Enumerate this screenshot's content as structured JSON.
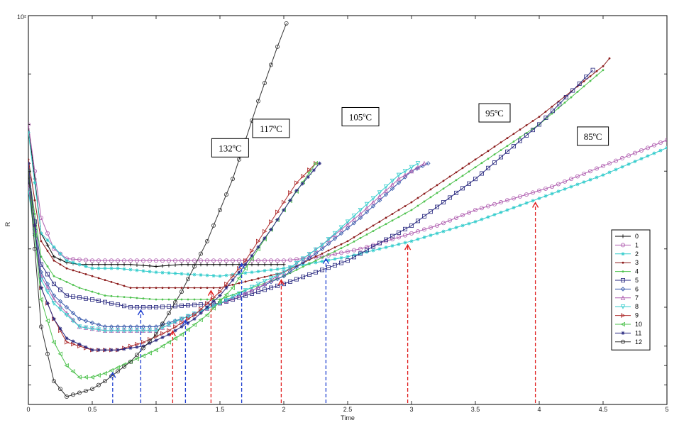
{
  "chart_data": {
    "type": "line",
    "title": "",
    "xlabel": "Time",
    "ylabel": "R",
    "xlim": [
      0,
      5
    ],
    "ylim_fraction": [
      0,
      1
    ],
    "y_scale": "log",
    "x_ticks": [
      "0",
      "0.5",
      "1",
      "1.5",
      "2",
      "2.5",
      "3",
      "3.5",
      "4",
      "4.5",
      "5"
    ],
    "y_top_label": "10²",
    "grid": false,
    "legend_position": "right",
    "series": [
      {
        "name": "0",
        "color": "#000000",
        "marker": "+",
        "points": [
          [
            0,
            0.72
          ],
          [
            0.1,
            0.44
          ],
          [
            0.2,
            0.38
          ],
          [
            0.3,
            0.365
          ],
          [
            0.4,
            0.36
          ],
          [
            0.6,
            0.36
          ],
          [
            0.8,
            0.36
          ],
          [
            1.0,
            0.355
          ],
          [
            1.2,
            0.36
          ],
          [
            1.5,
            0.36
          ],
          [
            1.8,
            0.36
          ],
          [
            2.0,
            0.36
          ]
        ]
      },
      {
        "name": "1",
        "color": "#b05fb0",
        "marker": "o",
        "points": [
          [
            0,
            0.72
          ],
          [
            0.1,
            0.48
          ],
          [
            0.2,
            0.4
          ],
          [
            0.3,
            0.375
          ],
          [
            0.5,
            0.37
          ],
          [
            1.0,
            0.37
          ],
          [
            1.5,
            0.37
          ],
          [
            2.0,
            0.37
          ],
          [
            2.3,
            0.38
          ],
          [
            2.6,
            0.4
          ],
          [
            2.9,
            0.43
          ],
          [
            3.2,
            0.46
          ],
          [
            3.5,
            0.5
          ],
          [
            3.8,
            0.53
          ],
          [
            4.1,
            0.56
          ],
          [
            4.4,
            0.6
          ],
          [
            4.7,
            0.64
          ],
          [
            5.0,
            0.68
          ]
        ]
      },
      {
        "name": "2",
        "color": "#33cccc",
        "marker": "*",
        "points": [
          [
            0,
            0.7
          ],
          [
            0.1,
            0.44
          ],
          [
            0.3,
            0.37
          ],
          [
            0.5,
            0.35
          ],
          [
            0.7,
            0.35
          ],
          [
            1.0,
            0.34
          ],
          [
            1.5,
            0.33
          ],
          [
            2.0,
            0.35
          ],
          [
            2.5,
            0.38
          ],
          [
            3.0,
            0.42
          ],
          [
            3.5,
            0.47
          ],
          [
            4.0,
            0.53
          ],
          [
            4.5,
            0.59
          ],
          [
            5.0,
            0.66
          ]
        ]
      },
      {
        "name": "3",
        "color": "#8b1a1a",
        "marker": "•",
        "points": [
          [
            0,
            0.63
          ],
          [
            0.1,
            0.42
          ],
          [
            0.2,
            0.37
          ],
          [
            0.3,
            0.35
          ],
          [
            0.5,
            0.33
          ],
          [
            0.8,
            0.3
          ],
          [
            1.0,
            0.3
          ],
          [
            1.5,
            0.3
          ],
          [
            2.0,
            0.34
          ],
          [
            2.5,
            0.42
          ],
          [
            3.0,
            0.52
          ],
          [
            3.5,
            0.63
          ],
          [
            4.0,
            0.74
          ],
          [
            4.5,
            0.87
          ],
          [
            4.55,
            0.89
          ]
        ]
      },
      {
        "name": "4",
        "color": "#4ec24e",
        "marker": "•",
        "points": [
          [
            0,
            0.6
          ],
          [
            0.1,
            0.38
          ],
          [
            0.2,
            0.33
          ],
          [
            0.4,
            0.3
          ],
          [
            0.6,
            0.28
          ],
          [
            1.0,
            0.27
          ],
          [
            1.5,
            0.27
          ],
          [
            2.0,
            0.33
          ],
          [
            2.5,
            0.41
          ],
          [
            3.0,
            0.5
          ],
          [
            3.5,
            0.61
          ],
          [
            4.0,
            0.72
          ],
          [
            4.5,
            0.86
          ]
        ]
      },
      {
        "name": "5",
        "color": "#2a2a80",
        "marker": "s",
        "points": [
          [
            0,
            0.58
          ],
          [
            0.1,
            0.36
          ],
          [
            0.2,
            0.31
          ],
          [
            0.3,
            0.28
          ],
          [
            0.5,
            0.27
          ],
          [
            0.8,
            0.25
          ],
          [
            1.0,
            0.25
          ],
          [
            1.5,
            0.26
          ],
          [
            2.0,
            0.31
          ],
          [
            2.5,
            0.37
          ],
          [
            3.0,
            0.46
          ],
          [
            3.5,
            0.58
          ],
          [
            4.0,
            0.72
          ],
          [
            4.42,
            0.86
          ]
        ]
      },
      {
        "name": "6",
        "color": "#3355aa",
        "marker": "d",
        "points": [
          [
            0,
            0.56
          ],
          [
            0.1,
            0.34
          ],
          [
            0.2,
            0.28
          ],
          [
            0.4,
            0.22
          ],
          [
            0.6,
            0.2
          ],
          [
            0.8,
            0.2
          ],
          [
            1.0,
            0.2
          ],
          [
            1.2,
            0.22
          ],
          [
            1.5,
            0.26
          ],
          [
            1.8,
            0.3
          ],
          [
            2.0,
            0.33
          ],
          [
            2.3,
            0.4
          ],
          [
            2.6,
            0.48
          ],
          [
            2.8,
            0.54
          ],
          [
            3.0,
            0.6
          ],
          [
            3.13,
            0.62
          ]
        ]
      },
      {
        "name": "7",
        "color": "#b05fb0",
        "marker": "^",
        "points": [
          [
            0,
            0.56
          ],
          [
            0.1,
            0.33
          ],
          [
            0.2,
            0.27
          ],
          [
            0.4,
            0.2
          ],
          [
            0.6,
            0.19
          ],
          [
            0.8,
            0.19
          ],
          [
            1.0,
            0.19
          ],
          [
            1.2,
            0.22
          ],
          [
            1.5,
            0.26
          ],
          [
            1.8,
            0.3
          ],
          [
            2.0,
            0.34
          ],
          [
            2.3,
            0.41
          ],
          [
            2.6,
            0.49
          ],
          [
            2.9,
            0.58
          ],
          [
            3.1,
            0.62
          ]
        ]
      },
      {
        "name": "8",
        "color": "#33cccc",
        "marker": "v",
        "points": [
          [
            0,
            0.55
          ],
          [
            0.1,
            0.32
          ],
          [
            0.2,
            0.26
          ],
          [
            0.4,
            0.2
          ],
          [
            0.6,
            0.19
          ],
          [
            0.8,
            0.19
          ],
          [
            1.0,
            0.19
          ],
          [
            1.2,
            0.22
          ],
          [
            1.5,
            0.26
          ],
          [
            1.8,
            0.31
          ],
          [
            2.0,
            0.34
          ],
          [
            2.3,
            0.41
          ],
          [
            2.6,
            0.5
          ],
          [
            2.9,
            0.59
          ],
          [
            3.05,
            0.62
          ]
        ]
      },
      {
        "name": "9",
        "color": "#b03030",
        "marker": ">",
        "points": [
          [
            0,
            0.62
          ],
          [
            0.1,
            0.3
          ],
          [
            0.2,
            0.22
          ],
          [
            0.3,
            0.16
          ],
          [
            0.5,
            0.14
          ],
          [
            0.7,
            0.14
          ],
          [
            0.9,
            0.16
          ],
          [
            1.1,
            0.19
          ],
          [
            1.3,
            0.23
          ],
          [
            1.5,
            0.29
          ],
          [
            1.7,
            0.37
          ],
          [
            1.9,
            0.47
          ],
          [
            2.1,
            0.57
          ],
          [
            2.25,
            0.62
          ]
        ]
      },
      {
        "name": "10",
        "color": "#4ec24e",
        "marker": "<",
        "points": [
          [
            0,
            0.6
          ],
          [
            0.1,
            0.27
          ],
          [
            0.2,
            0.16
          ],
          [
            0.3,
            0.1
          ],
          [
            0.4,
            0.07
          ],
          [
            0.5,
            0.07
          ],
          [
            0.6,
            0.08
          ],
          [
            0.8,
            0.11
          ],
          [
            1.0,
            0.14
          ],
          [
            1.2,
            0.18
          ],
          [
            1.4,
            0.23
          ],
          [
            1.6,
            0.3
          ],
          [
            1.8,
            0.4
          ],
          [
            2.0,
            0.5
          ],
          [
            2.25,
            0.62
          ]
        ]
      },
      {
        "name": "11",
        "color": "#2a2a80",
        "marker": "*",
        "points": [
          [
            0,
            0.62
          ],
          [
            0.1,
            0.3
          ],
          [
            0.2,
            0.22
          ],
          [
            0.3,
            0.17
          ],
          [
            0.5,
            0.14
          ],
          [
            0.7,
            0.14
          ],
          [
            0.9,
            0.15
          ],
          [
            1.1,
            0.18
          ],
          [
            1.3,
            0.22
          ],
          [
            1.5,
            0.28
          ],
          [
            1.7,
            0.36
          ],
          [
            1.9,
            0.45
          ],
          [
            2.1,
            0.55
          ],
          [
            2.28,
            0.62
          ]
        ]
      },
      {
        "name": "12",
        "color": "#333333",
        "marker": "h",
        "points": [
          [
            0,
            0.6
          ],
          [
            0.1,
            0.2
          ],
          [
            0.2,
            0.06
          ],
          [
            0.3,
            0.02
          ],
          [
            0.4,
            0.03
          ],
          [
            0.5,
            0.04
          ],
          [
            0.6,
            0.06
          ],
          [
            0.8,
            0.11
          ],
          [
            1.0,
            0.18
          ],
          [
            1.2,
            0.29
          ],
          [
            1.4,
            0.42
          ],
          [
            1.6,
            0.58
          ],
          [
            1.8,
            0.78
          ],
          [
            1.95,
            0.92
          ],
          [
            2.02,
            0.98
          ]
        ]
      }
    ],
    "annotations": [
      {
        "text": "132ºC",
        "x": 1.58,
        "y": 0.66
      },
      {
        "text": "117ºC",
        "x": 1.9,
        "y": 0.71
      },
      {
        "text": "105ºC",
        "x": 2.6,
        "y": 0.74
      },
      {
        "text": "95ºC",
        "x": 3.65,
        "y": 0.75
      },
      {
        "text": "85ºC",
        "x": 4.42,
        "y": 0.69
      }
    ],
    "markers_blue": [
      0.66,
      0.88,
      1.23,
      1.67,
      2.33
    ],
    "markers_red": [
      1.13,
      1.43,
      1.98,
      2.97,
      3.97
    ]
  }
}
